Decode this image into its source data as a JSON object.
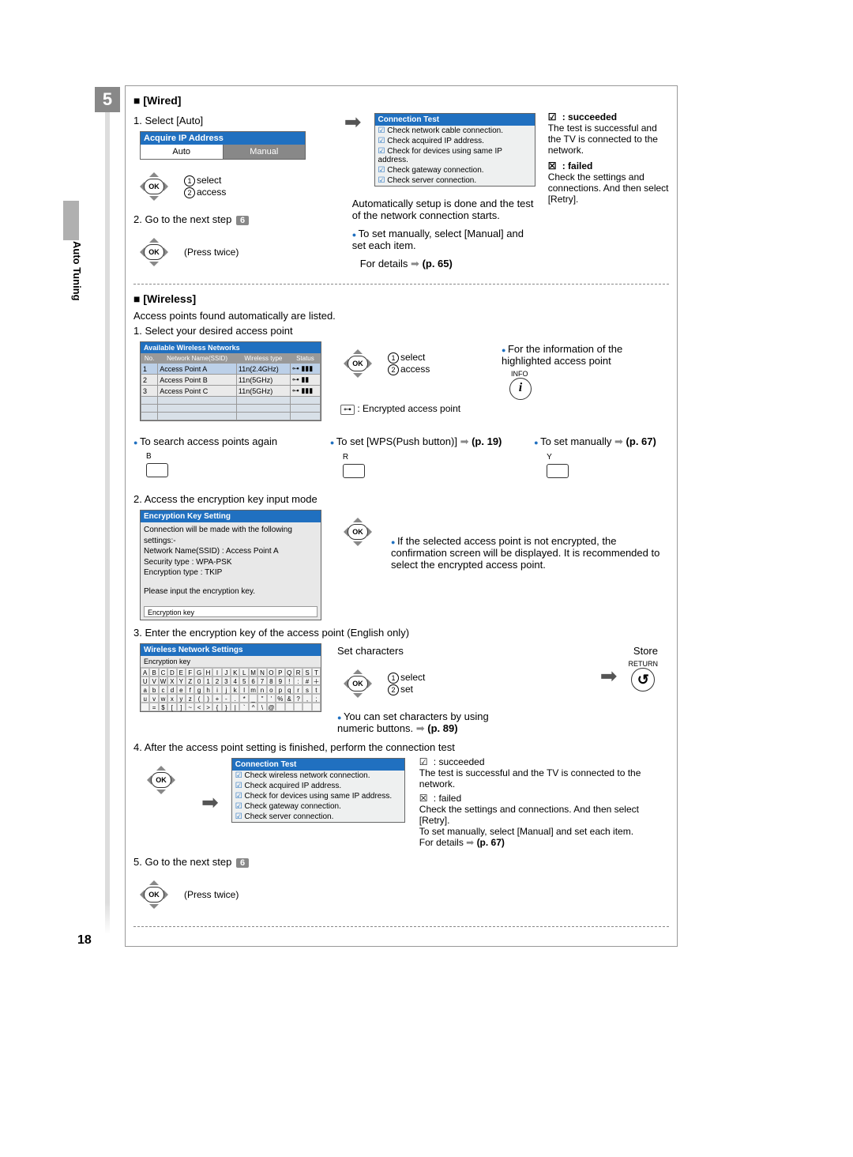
{
  "page_number": "18",
  "side_tab": "Auto Tuning",
  "step_number": "5",
  "wired": {
    "heading": "[Wired]",
    "step1": "1.  Select [Auto]",
    "ip_box_title": "Acquire IP Address",
    "ip_auto": "Auto",
    "ip_manual": "Manual",
    "select_label": "select",
    "access_label": "access",
    "auto_text": "Automatically setup is done and the test of the network connection starts.",
    "manual_note": "To set manually, select [Manual] and set each item.",
    "details_ref": "(p. 65)",
    "details_prefix": "For details",
    "step2": "2.  Go to the next step",
    "press_twice": "(Press twice)",
    "next_step_num": "6",
    "ctest_title": "Connection Test",
    "ctest_rows": [
      "Check network cable connection.",
      "Check acquired IP address.",
      "Check for devices using same IP address.",
      "Check gateway connection.",
      "Check server connection."
    ],
    "succeeded_label": ": succeeded",
    "succeeded_text": "The test is successful and the TV is connected to the network.",
    "failed_label": ": failed",
    "failed_text": "Check the settings and connections. And then select [Retry]."
  },
  "wireless": {
    "heading": "[Wireless]",
    "found_text": "Access points found automatically are listed.",
    "step1": "1.  Select your desired access point",
    "wtable_title": "Available Wireless Networks",
    "wtable_headers": [
      "No.",
      "Network Name(SSID)",
      "Wireless type",
      "Status"
    ],
    "wtable_rows": [
      [
        "1",
        "Access Point A",
        "11n(2.4GHz)",
        "⊶ ▮▮▮"
      ],
      [
        "2",
        "Access Point B",
        "11n(5GHz)",
        "⊶ ▮▮"
      ],
      [
        "3",
        "Access Point C",
        "11n(5GHz)",
        "⊶ ▮▮▮"
      ]
    ],
    "select_label": "select",
    "access_label": "access",
    "info_text": "For the information of the highlighted access point",
    "info_button": "INFO",
    "encrypted_text": ": Encrypted access point",
    "search_again": "To search access points again",
    "btn_B": "B",
    "wps_text": "To set [WPS(Push button)]",
    "wps_ref": "(p. 19)",
    "btn_R": "R",
    "manual_text": "To set manually",
    "manual_ref": "(p. 67)",
    "btn_Y": "Y",
    "step2": "2.  Access the encryption key input mode",
    "enc_title": "Encryption Key Setting",
    "enc_body1": "Connection will be made with the following settings:-",
    "enc_body2": "Network Name(SSID) : Access Point A",
    "enc_body3": "Security type : WPA-PSK",
    "enc_body4": "Encryption type : TKIP",
    "enc_body5": "Please input the encryption key.",
    "enc_field_label": "Encryption key",
    "not_encrypted_note": "If the selected access point is not encrypted, the confirmation screen will be displayed. It is recommended to select the encrypted access point.",
    "step3": "3.  Enter the encryption key of the access point (English only)",
    "kb_title": "Wireless Network Settings",
    "kb_sub": "Encryption key",
    "kb_rows": [
      [
        "A",
        "B",
        "C",
        "D",
        "E",
        "F",
        "G",
        "H",
        "I",
        "J",
        "K",
        "L",
        "M",
        "N",
        "O",
        "P",
        "Q",
        "R",
        "S",
        "T"
      ],
      [
        "U",
        "V",
        "W",
        "X",
        "Y",
        "Z",
        "0",
        "1",
        "2",
        "3",
        "4",
        "5",
        "6",
        "7",
        "8",
        "9",
        "!",
        ":",
        "#",
        "＋"
      ],
      [
        "a",
        "b",
        "c",
        "d",
        "e",
        "f",
        "g",
        "h",
        "i",
        "j",
        "k",
        "l",
        "m",
        "n",
        "o",
        "p",
        "q",
        "r",
        "s",
        "t"
      ],
      [
        "u",
        "v",
        "w",
        "x",
        "y",
        "z",
        "(",
        ")",
        "+",
        "-",
        ".",
        "*",
        "_",
        "\"",
        "'",
        "%",
        "&",
        "?",
        ",",
        ";"
      ],
      [
        "",
        "=",
        "$",
        "[",
        "]",
        "~",
        "<",
        ">",
        "{",
        "}",
        "|",
        "`",
        "^",
        "\\",
        "@",
        "",
        "",
        "",
        "",
        ""
      ]
    ],
    "set_chars": "Set characters",
    "set_label": "set",
    "numeric_note": "You can set characters by using numeric buttons.",
    "numeric_ref": "(p. 89)",
    "store_label": "Store",
    "return_label": "RETURN",
    "step4": "4.  After the access point setting is finished, perform the connection test",
    "ctest2_title": "Connection Test",
    "ctest2_rows": [
      "Check wireless network connection.",
      "Check acquired IP address.",
      "Check for devices using same IP address.",
      "Check gateway connection.",
      "Check server connection."
    ],
    "succ2_label": ": succeeded",
    "succ2_text": "The test is successful and the TV is connected to the network.",
    "failed2_label": ": failed",
    "failed2_text": "Check the settings and connections. And then select [Retry].",
    "manual2_text": "To set manually, select [Manual] and set each item.",
    "details2_prefix": "For details",
    "details2_ref": "(p. 67)",
    "step5": "5.  Go to the next step",
    "next_step_num": "6",
    "press_twice": "(Press twice)"
  }
}
